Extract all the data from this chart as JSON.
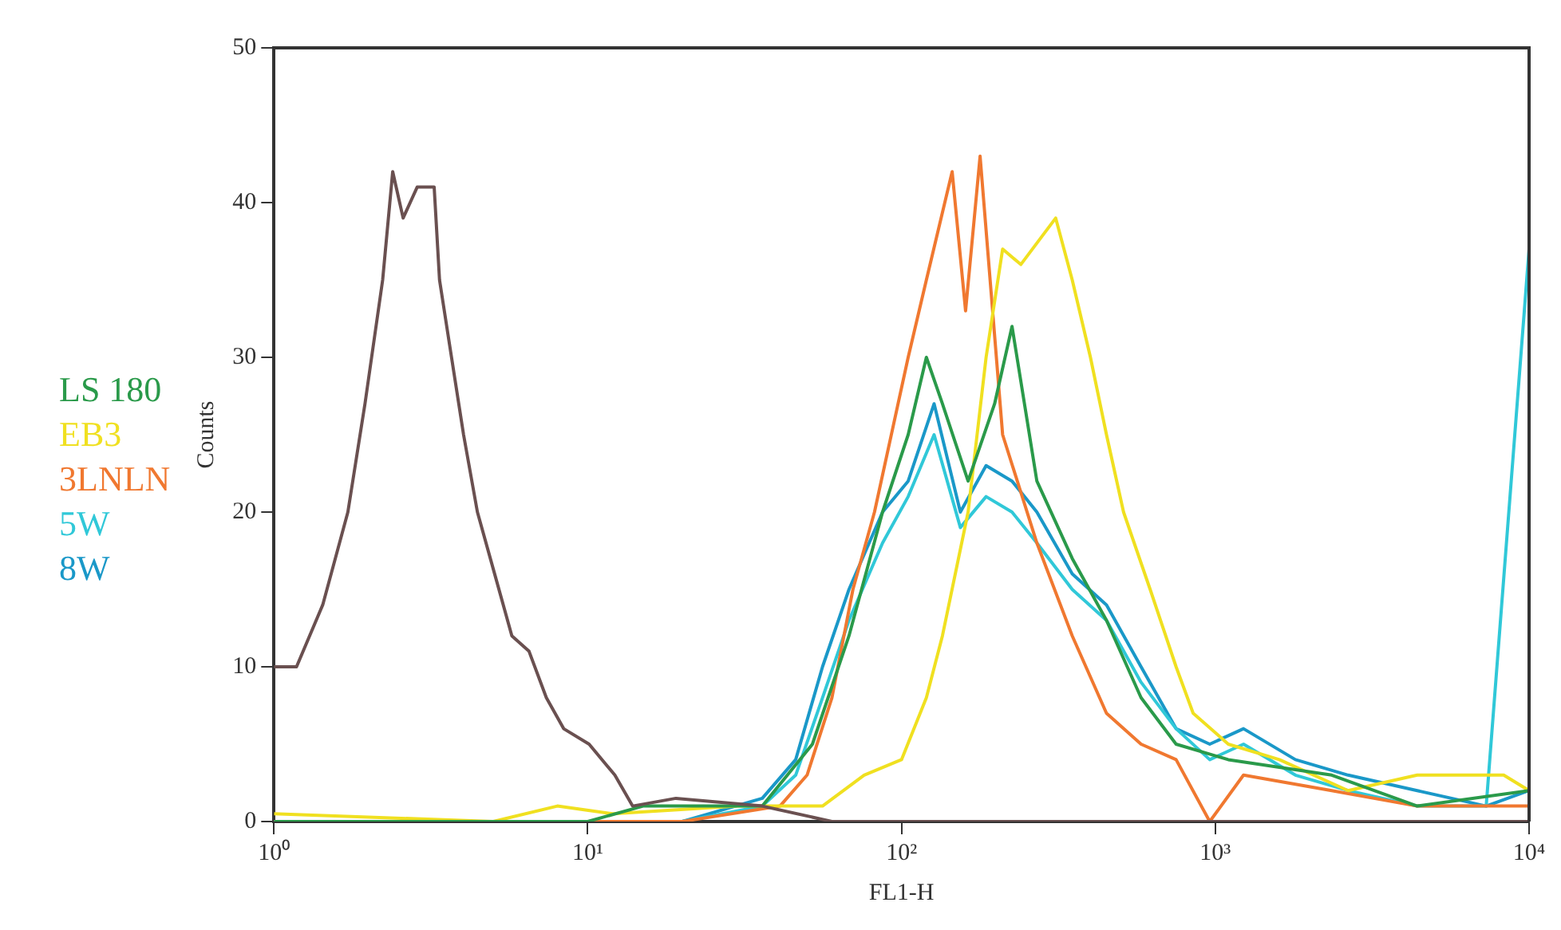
{
  "chart_data": {
    "type": "line",
    "xlabel": "FL1-H",
    "ylabel": "Counts",
    "log": "x",
    "xlim": [
      1,
      10000
    ],
    "ylim": [
      0,
      50
    ],
    "xticks": [
      {
        "value": 1,
        "label": "10⁰"
      },
      {
        "value": 10,
        "label": "10¹"
      },
      {
        "value": 100,
        "label": "10²"
      },
      {
        "value": 1000,
        "label": "10³"
      },
      {
        "value": 10000,
        "label": "10⁴"
      }
    ],
    "yticks": [
      0,
      10,
      20,
      30,
      40,
      50
    ],
    "grid": false,
    "legend": "left",
    "marker": "none",
    "line_style": "solid",
    "series": [
      {
        "color": "#6a5050",
        "x": [
          1,
          1.18,
          1.43,
          1.72,
          1.95,
          2.22,
          2.39,
          2.58,
          2.86,
          3.24,
          3.37,
          3.68,
          4.02,
          4.45,
          5.05,
          5.73,
          6.5,
          7.38,
          8.38,
          10.1,
          12.2,
          13.9,
          19.1,
          36,
          60,
          350,
          4400,
          10000
        ],
        "values": [
          10,
          10,
          14,
          20,
          27,
          35,
          42,
          39,
          41,
          41,
          35,
          30,
          25,
          20,
          16,
          12,
          11,
          8,
          6,
          5,
          3,
          1,
          1.5,
          1,
          0,
          0,
          0,
          0
        ]
      },
      {
        "name": "LS 180",
        "color": "#2a9a4a",
        "x": [
          1,
          10,
          15,
          36,
          52,
          68,
          87,
          105,
          120,
          135,
          163,
          198,
          225,
          270,
          350,
          450,
          580,
          750,
          1100,
          2350,
          4400,
          10000
        ],
        "values": [
          0,
          0,
          1,
          1,
          5,
          12,
          20,
          25,
          30,
          27,
          22,
          27,
          32,
          22,
          17,
          13,
          8,
          5,
          4,
          3,
          1,
          2
        ]
      },
      {
        "name": "EB3",
        "color": "#f0e020",
        "x": [
          1,
          5,
          8,
          12,
          30,
          56,
          76,
          100,
          120,
          135,
          163,
          186,
          210,
          240,
          310,
          350,
          400,
          450,
          510,
          620,
          750,
          850,
          1100,
          1600,
          2650,
          4400,
          8300,
          10000
        ],
        "values": [
          0.5,
          0,
          1,
          0.5,
          1,
          1,
          3,
          4,
          8,
          12,
          20,
          30,
          37,
          36,
          39,
          35,
          30,
          25,
          20,
          15,
          10,
          7,
          5,
          4,
          2,
          3,
          3,
          2
        ]
      },
      {
        "name": "3LNLN",
        "color": "#f07830",
        "x": [
          1,
          20,
          41,
          50,
          60,
          70,
          82,
          105,
          120,
          145,
          160,
          178,
          210,
          270,
          350,
          450,
          580,
          750,
          960,
          1230,
          2350,
          4400,
          10000
        ],
        "values": [
          0,
          0,
          1,
          3,
          8,
          15,
          20,
          30,
          35,
          42,
          33,
          43,
          25,
          18,
          12,
          7,
          5,
          4,
          0,
          3,
          2,
          1,
          1
        ]
      },
      {
        "name": "5W",
        "color": "#30c8d8",
        "x": [
          1,
          20,
          36,
          46,
          56,
          68,
          87,
          105,
          127,
          154,
          186,
          225,
          270,
          350,
          450,
          580,
          750,
          960,
          1230,
          1800,
          2650,
          4400,
          7300,
          10000
        ],
        "values": [
          0,
          0,
          1,
          3,
          8,
          13,
          18,
          21,
          25,
          19,
          21,
          20,
          18,
          15,
          13,
          9,
          6,
          4,
          5,
          3,
          2,
          1,
          1,
          37
        ]
      },
      {
        "name": "8W",
        "color": "#1a98c8",
        "x": [
          1,
          20,
          36,
          46,
          56,
          68,
          87,
          105,
          127,
          154,
          186,
          225,
          270,
          350,
          450,
          580,
          750,
          960,
          1230,
          1800,
          2650,
          4400,
          7300,
          10000
        ],
        "values": [
          0,
          0,
          1.5,
          4,
          10,
          15,
          20,
          22,
          27,
          20,
          23,
          22,
          20,
          16,
          14,
          10,
          6,
          5,
          6,
          4,
          3,
          2,
          1,
          2
        ]
      }
    ]
  }
}
